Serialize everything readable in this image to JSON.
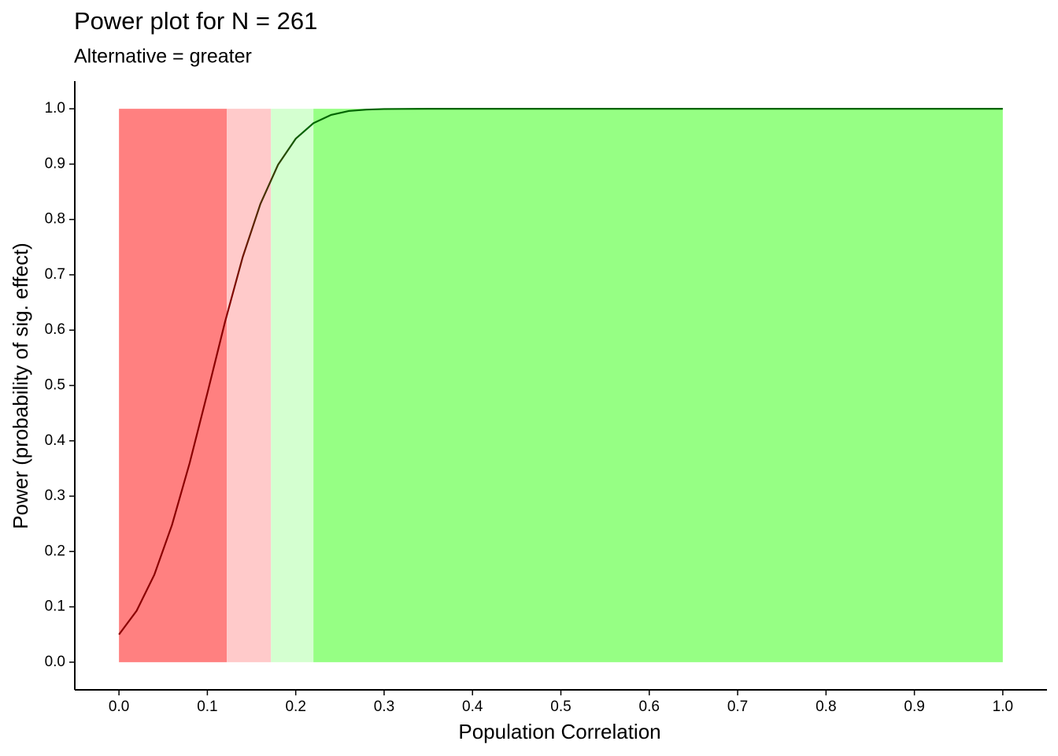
{
  "chart_data": {
    "type": "line",
    "title": "Power plot for N = 261",
    "subtitle": "Alternative = greater",
    "x_label": "Population Correlation",
    "y_label": "Power (probability of sig. effect)",
    "x": [
      0,
      0.02,
      0.04,
      0.06,
      0.08,
      0.1,
      0.12,
      0.14,
      0.16,
      0.18,
      0.2,
      0.22,
      0.24,
      0.26,
      0.28,
      0.3,
      0.35,
      0.4,
      0.5,
      0.6,
      0.7,
      0.8,
      0.9,
      1.0
    ],
    "values": [
      0.05,
      0.093,
      0.158,
      0.248,
      0.36,
      0.486,
      0.615,
      0.732,
      0.828,
      0.899,
      0.946,
      0.974,
      0.989,
      0.996,
      0.9985,
      0.9996,
      1,
      1,
      1,
      1,
      1,
      1,
      1,
      1
    ],
    "line_colors": [
      "#8b0000",
      "#006400"
    ],
    "bands": [
      {
        "from": 0,
        "to": 0.122,
        "color": "#ff8080"
      },
      {
        "from": 0.122,
        "to": 0.172,
        "color": "#ffcaca"
      },
      {
        "from": 0.172,
        "to": 0.22,
        "color": "#d4ffd0"
      },
      {
        "from": 0.22,
        "to": 1.0,
        "color": "#96ff84"
      }
    ],
    "band_ylim": [
      0,
      1.0
    ],
    "xlim": [
      -0.05,
      1.05
    ],
    "ylim": [
      -0.05,
      1.05
    ],
    "xticks": [
      {
        "value": 0,
        "label": "0.0"
      },
      0.1,
      0.2,
      0.3,
      0.4,
      0.5,
      0.6,
      0.7,
      0.8,
      0.9,
      {
        "value": 1,
        "label": "1.0"
      }
    ],
    "yticks": [
      {
        "value": 0,
        "label": "0.0"
      },
      0.1,
      0.2,
      0.3,
      0.4,
      0.5,
      0.6,
      0.7,
      0.8,
      0.9,
      {
        "value": 1,
        "label": "1.0"
      }
    ],
    "grid": false
  }
}
